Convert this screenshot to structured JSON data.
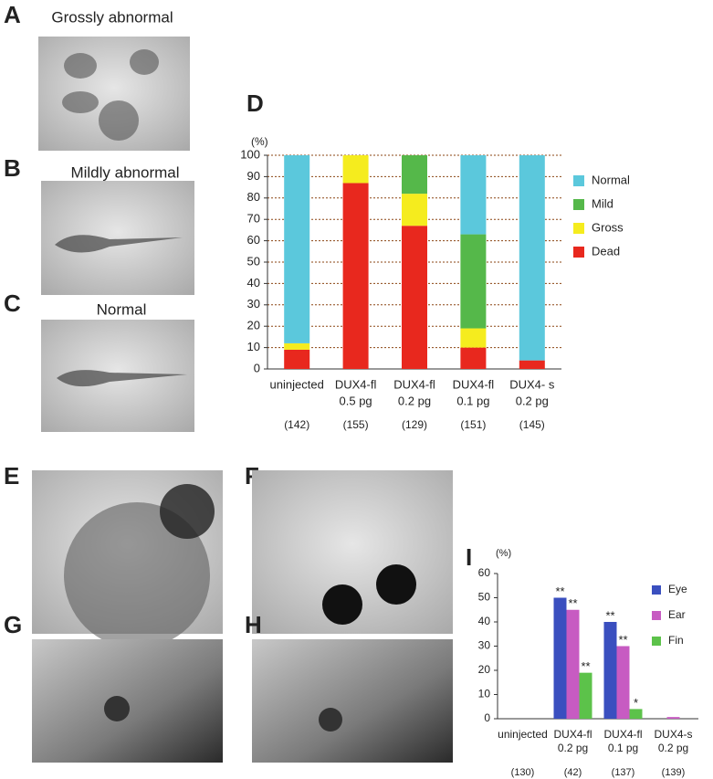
{
  "panels": {
    "A": {
      "label": "A",
      "caption": "Grossly abnormal"
    },
    "B": {
      "label": "B",
      "caption": "Mildly abnormal"
    },
    "C": {
      "label": "C",
      "caption": "Normal"
    },
    "E": {
      "label": "E"
    },
    "F": {
      "label": "F"
    },
    "G": {
      "label": "G"
    },
    "H": {
      "label": "H"
    }
  },
  "chart_data": [
    {
      "type": "bar",
      "stacked": true,
      "panel_label": "D",
      "y_unit": "(%)",
      "categories": [
        [
          "uninjected"
        ],
        [
          "DUX4-fl",
          "0.5 pg"
        ],
        [
          "DUX4-fl",
          "0.2 pg"
        ],
        [
          "DUX4-fl",
          "0.1 pg"
        ],
        [
          "DUX4- s",
          "0.2 pg"
        ]
      ],
      "counts": [
        "(142)",
        "(155)",
        "(129)",
        "(151)",
        "(145)"
      ],
      "series": [
        {
          "name": "Normal",
          "color": "#5bc8dc",
          "values": [
            88,
            0,
            0,
            37,
            96
          ]
        },
        {
          "name": "Mild",
          "color": "#55b84a",
          "values": [
            0,
            0,
            18,
            44,
            0
          ]
        },
        {
          "name": "Gross",
          "color": "#f5ec1e",
          "values": [
            3,
            13,
            15,
            9,
            0
          ]
        },
        {
          "name": "Dead",
          "color": "#e8281e",
          "values": [
            9,
            87,
            67,
            10,
            4
          ]
        }
      ],
      "ylim": [
        0,
        100
      ],
      "yticks": [
        0,
        10,
        20,
        30,
        40,
        50,
        60,
        70,
        80,
        90,
        100
      ],
      "grid": true
    },
    {
      "type": "bar",
      "stacked": false,
      "panel_label": "I",
      "y_unit": "(%)",
      "categories": [
        [
          "uninjected"
        ],
        [
          "DUX4-fl",
          "0.2 pg"
        ],
        [
          "DUX4-fl",
          "0.1 pg"
        ],
        [
          "DUX4-s",
          "0.2 pg"
        ]
      ],
      "counts": [
        "(130)",
        "(42)",
        "(137)",
        "(139)"
      ],
      "series": [
        {
          "name": "Eye",
          "color": "#3a4fbf",
          "values": [
            0,
            50,
            40,
            0
          ],
          "significance": [
            null,
            "**",
            "**",
            null
          ]
        },
        {
          "name": "Ear",
          "color": "#c75bc2",
          "values": [
            0,
            45,
            30,
            0.7
          ],
          "significance": [
            null,
            "**",
            "**",
            null
          ]
        },
        {
          "name": "Fin",
          "color": "#5cc24a",
          "values": [
            0,
            19,
            4,
            0
          ],
          "significance": [
            null,
            "**",
            "*",
            null
          ]
        }
      ],
      "ylim": [
        0,
        60
      ],
      "yticks": [
        0,
        10,
        20,
        30,
        40,
        50,
        60
      ],
      "grid": false
    }
  ]
}
